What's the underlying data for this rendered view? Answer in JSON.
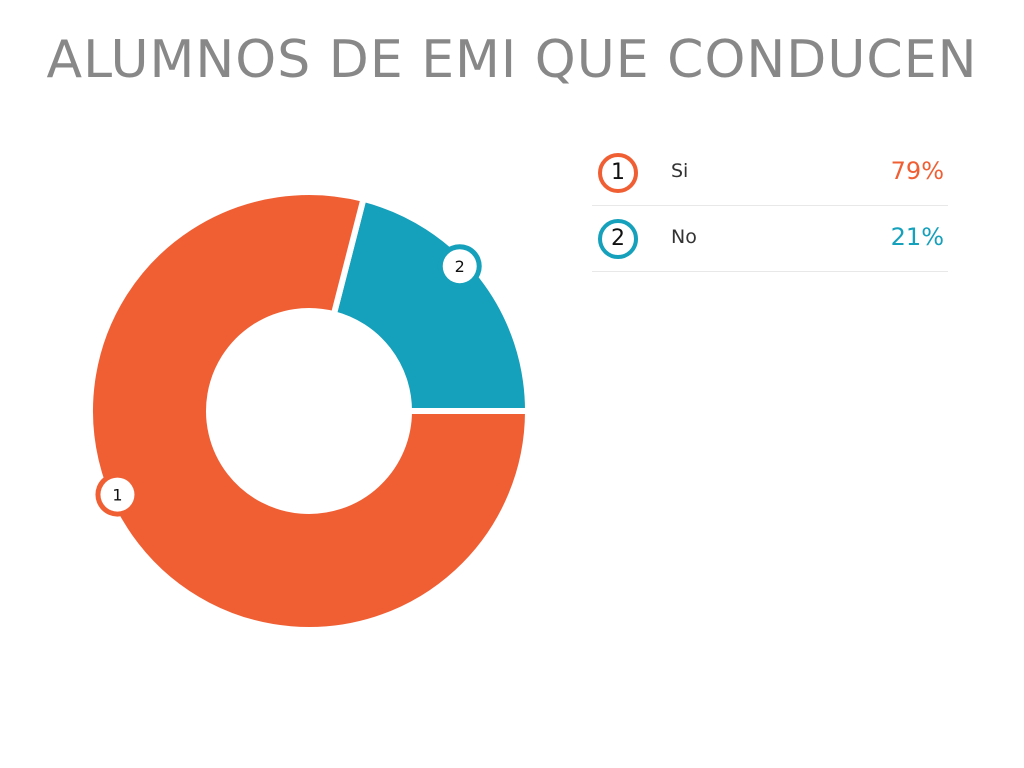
{
  "chart_data": {
    "type": "pie",
    "title": "ALUMNOS DE EMI QUE CONDUCEN",
    "categories": [
      "Si",
      "No"
    ],
    "values": [
      79,
      21
    ],
    "markers": [
      "1",
      "2"
    ],
    "value_labels": [
      "79%",
      "21%"
    ],
    "colors": [
      "#f05f34",
      "#15a0bb"
    ],
    "donut": true,
    "legend_position": "right"
  }
}
